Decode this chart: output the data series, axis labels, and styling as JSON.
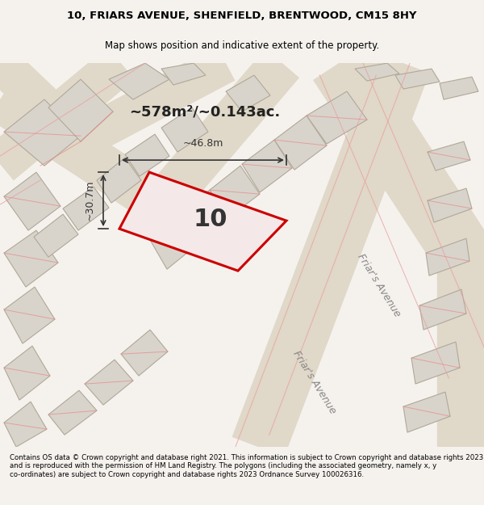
{
  "title_line1": "10, FRIARS AVENUE, SHENFIELD, BRENTWOOD, CM15 8HY",
  "title_line2": "Map shows position and indicative extent of the property.",
  "footer_text": "Contains OS data © Crown copyright and database right 2021. This information is subject to Crown copyright and database rights 2023 and is reproduced with the permission of HM Land Registry. The polygons (including the associated geometry, namely x, y co-ordinates) are subject to Crown copyright and database rights 2023 Ordnance Survey 100026316.",
  "area_m2": "~578m²/~0.143ac.",
  "width_label": "~46.8m",
  "height_label": "~30.7m",
  "plot_number": "10",
  "bg_color": "#f0ede8",
  "map_bg": "#f5f2ee",
  "road_color": "#e8e0d0",
  "building_fill": "#d8d4cc",
  "building_edge": "#b0a898",
  "plot_fill": "#f5e8e8",
  "plot_edge": "#cc0000",
  "street_label_color": "#888888",
  "dim_color": "#333333"
}
